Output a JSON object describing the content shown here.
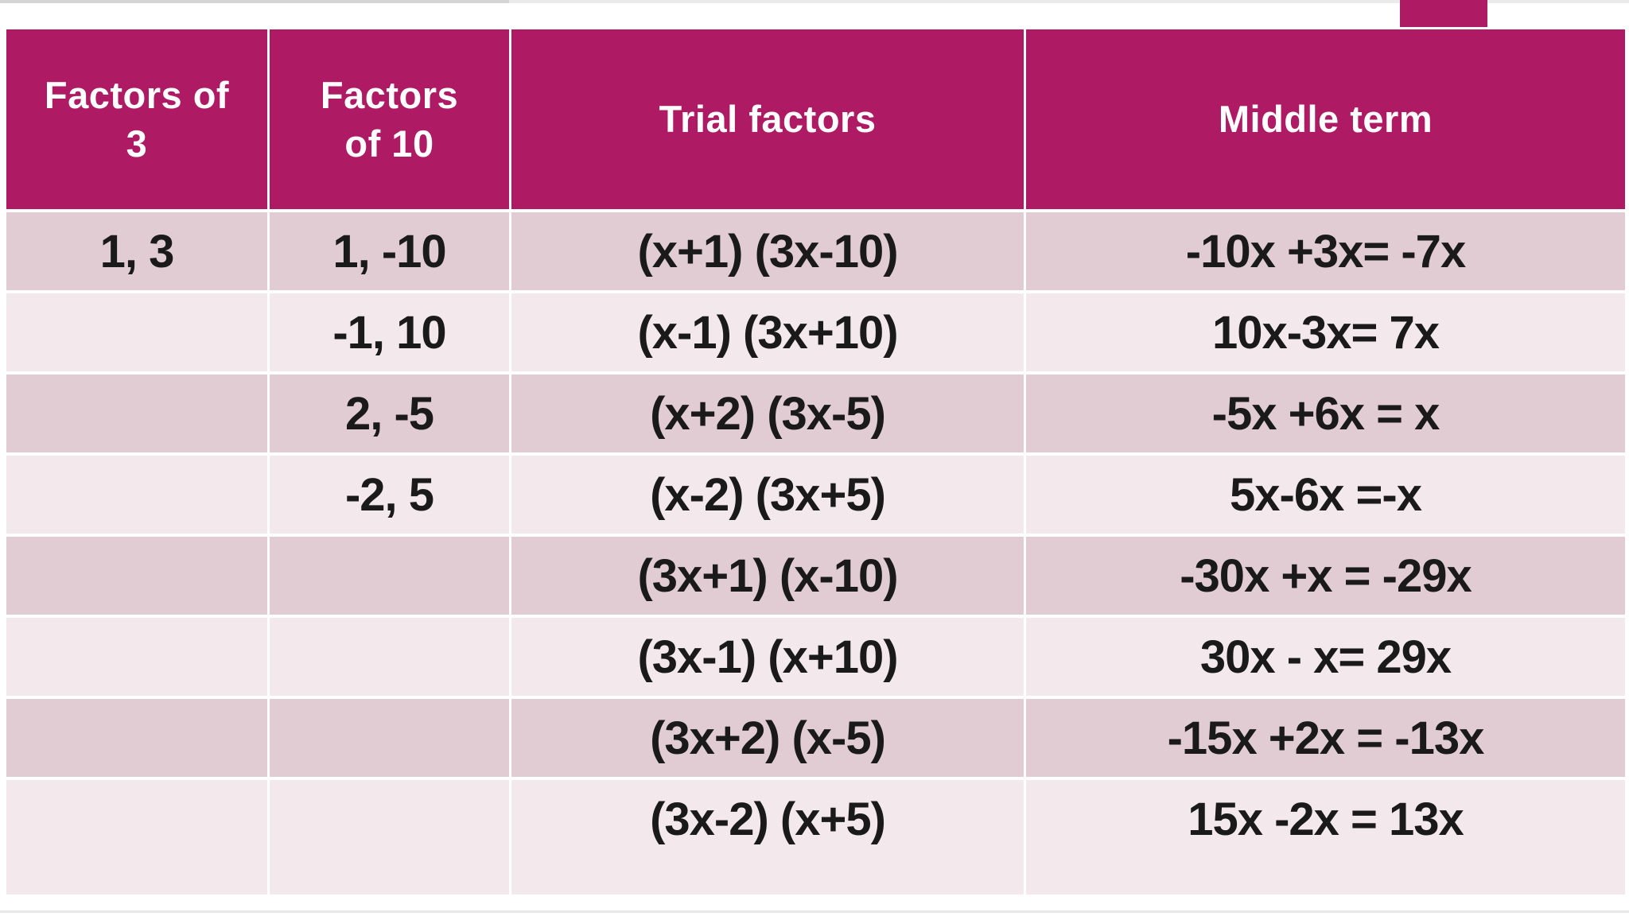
{
  "colors": {
    "accent_magenta": "#ae1a63",
    "row_dark": "#e1ccd4",
    "row_light": "#f3e9ed",
    "header_text": "#ffffff",
    "body_text": "#1a1a1a"
  },
  "table": {
    "headers": [
      "Factors of\n3",
      "Factors\nof 10",
      "Trial factors",
      "Middle term"
    ],
    "rows": [
      [
        "1, 3",
        "1, -10",
        "(x+1) (3x-10)",
        "-10x +3x= -7x"
      ],
      [
        "",
        "-1, 10",
        "(x-1) (3x+10)",
        "10x-3x= 7x"
      ],
      [
        "",
        "2, -5",
        "(x+2) (3x-5)",
        "-5x +6x = x"
      ],
      [
        "",
        "-2, 5",
        "(x-2) (3x+5)",
        "5x-6x =-x"
      ],
      [
        "",
        "",
        "(3x+1) (x-10)",
        "-30x +x = -29x"
      ],
      [
        "",
        "",
        "(3x-1) (x+10)",
        "30x - x= 29x"
      ],
      [
        "",
        "",
        "(3x+2) (x-5)",
        "-15x +2x = -13x"
      ],
      [
        "",
        "",
        "(3x-2) (x+5)",
        "15x -2x = 13x"
      ]
    ]
  }
}
